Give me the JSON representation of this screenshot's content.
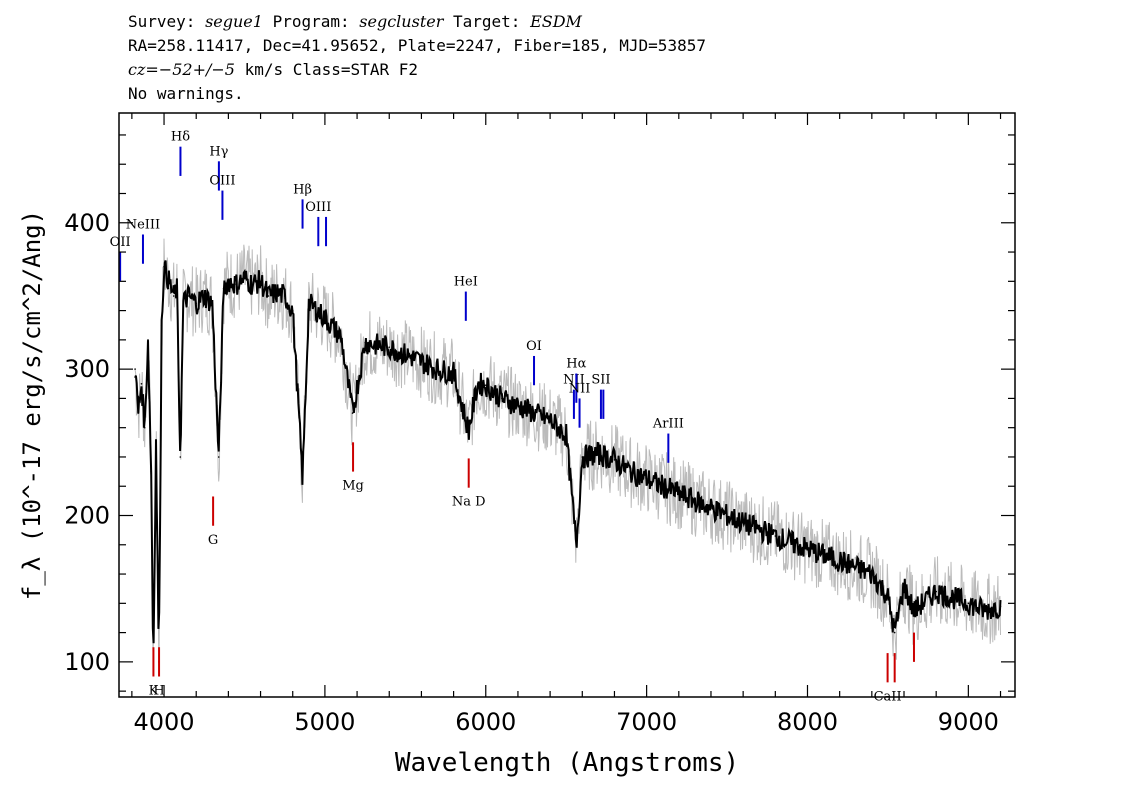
{
  "header": {
    "line1": {
      "survey_label": "Survey:",
      "survey": "segue1",
      "program_label": "Program:",
      "program": "segcluster",
      "target_label": "Target:",
      "target": "ESDM"
    },
    "line2": "RA=258.11417, Dec=41.95652, Plate=2247, Fiber=185, MJD=53857",
    "line3": {
      "cz": "cz=",
      "value": "−52+/−5",
      "rest": " km/s Class=STAR F2"
    },
    "line4": "No warnings."
  },
  "chart_data": {
    "type": "line",
    "xlabel": "Wavelength (Angstroms)",
    "ylabel": "f_λ (10^-17 erg/s/cm^2/Ang)",
    "xlim": [
      3720,
      9290
    ],
    "ylim": [
      76,
      475
    ],
    "x_ticks": [
      4000,
      5000,
      6000,
      7000,
      8000,
      9000
    ],
    "y_ticks": [
      100,
      200,
      300,
      400
    ],
    "grid": false,
    "series": [
      {
        "color": "#000000",
        "x": [
          3820,
          3840,
          3860,
          3880,
          3900,
          3920,
          3933,
          3950,
          3968,
          3985,
          4000,
          4030,
          4060,
          4080,
          4101,
          4120,
          4150,
          4200,
          4250,
          4300,
          4340,
          4370,
          4400,
          4450,
          4500,
          4550,
          4600,
          4650,
          4700,
          4750,
          4800,
          4861,
          4900,
          5000,
          5100,
          5172,
          5250,
          5400,
          5500,
          5600,
          5700,
          5800,
          5893,
          5950,
          6000,
          6100,
          6200,
          6300,
          6400,
          6500,
          6563,
          6600,
          6700,
          6800,
          6900,
          7000,
          7200,
          7400,
          7600,
          7800,
          8000,
          8200,
          8400,
          8498,
          8542,
          8600,
          8662,
          8800,
          9000,
          9100,
          9200
        ],
        "y": [
          300,
          270,
          290,
          260,
          320,
          230,
          95,
          250,
          100,
          330,
          370,
          360,
          350,
          355,
          240,
          345,
          350,
          345,
          350,
          345,
          240,
          355,
          360,
          358,
          362,
          358,
          360,
          350,
          352,
          350,
          340,
          225,
          345,
          335,
          322,
          270,
          318,
          315,
          310,
          305,
          300,
          297,
          258,
          290,
          289,
          280,
          275,
          270,
          265,
          255,
          180,
          240,
          242,
          238,
          230,
          225,
          215,
          205,
          195,
          186,
          177,
          169,
          160,
          145,
          120,
          152,
          135,
          148,
          140,
          135,
          138
        ]
      },
      {
        "name": "error",
        "color": "#bbbbbb",
        "x": [
          3820,
          4000,
          4500,
          5000,
          5500,
          6000,
          6500,
          7000,
          7500,
          8000,
          8500,
          9000,
          9200
        ],
        "y": [
          300,
          365,
          358,
          335,
          312,
          289,
          262,
          225,
          200,
          177,
          150,
          140,
          138
        ]
      }
    ],
    "lines": [
      {
        "label": "OII",
        "x": 3727,
        "y1": 360,
        "y2": 380,
        "color": "#0000cc"
      },
      {
        "label": "NeIII",
        "x": 3869,
        "y1": 372,
        "y2": 392,
        "color": "#0000cc"
      },
      {
        "label": "Hδ",
        "x": 4102,
        "y1": 432,
        "y2": 452,
        "color": "#0000cc"
      },
      {
        "label": "Hγ",
        "x": 4341,
        "y1": 422,
        "y2": 442,
        "color": "#0000cc"
      },
      {
        "label": "OIII",
        "x": 4363,
        "y1": 402,
        "y2": 422,
        "color": "#0000cc"
      },
      {
        "label": "Hβ",
        "x": 4861,
        "y1": 396,
        "y2": 416,
        "color": "#0000cc"
      },
      {
        "label": "OIII",
        "x": 4959,
        "y1": 384,
        "y2": 404,
        "color": "#0000cc"
      },
      {
        "label": "",
        "x": 5007,
        "y1": 384,
        "y2": 404,
        "color": "#0000cc"
      },
      {
        "label": "HeI",
        "x": 5876,
        "y1": 333,
        "y2": 353,
        "color": "#0000cc"
      },
      {
        "label": "OI",
        "x": 6300,
        "y1": 289,
        "y2": 309,
        "color": "#0000cc"
      },
      {
        "label": "NII",
        "x": 6548,
        "y1": 266,
        "y2": 286,
        "color": "#0000cc"
      },
      {
        "label": "Hα",
        "x": 6563,
        "y1": 277,
        "y2": 297,
        "color": "#0000cc"
      },
      {
        "label": "NII",
        "x": 6583,
        "y1": 260,
        "y2": 280,
        "color": "#0000cc"
      },
      {
        "label": "SII",
        "x": 6716,
        "y1": 266,
        "y2": 286,
        "color": "#0000cc"
      },
      {
        "label": "",
        "x": 6731,
        "y1": 266,
        "y2": 286,
        "color": "#0000cc"
      },
      {
        "label": "ArIII",
        "x": 7135,
        "y1": 236,
        "y2": 256,
        "color": "#0000cc"
      },
      {
        "label": "K",
        "x": 3934,
        "y1": 90,
        "y2": 110,
        "color": "#cc0000"
      },
      {
        "label": "H",
        "x": 3969,
        "y1": 90,
        "y2": 110,
        "color": "#cc0000"
      },
      {
        "label": "G",
        "x": 4305,
        "y1": 193,
        "y2": 213,
        "color": "#cc0000"
      },
      {
        "label": "Mg",
        "x": 5175,
        "y1": 230,
        "y2": 250,
        "color": "#cc0000"
      },
      {
        "label": "Na D",
        "x": 5894,
        "y1": 219,
        "y2": 239,
        "color": "#cc0000"
      },
      {
        "label": "CaII",
        "x": 8498,
        "y1": 86,
        "y2": 106,
        "color": "#cc0000"
      },
      {
        "label": "",
        "x": 8542,
        "y1": 86,
        "y2": 106,
        "color": "#cc0000"
      },
      {
        "label": "",
        "x": 8662,
        "y1": 100,
        "y2": 120,
        "color": "#cc0000"
      }
    ]
  }
}
